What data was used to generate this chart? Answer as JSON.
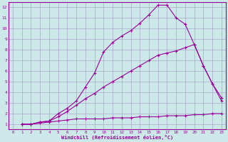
{
  "bg_color": "#cce8e8",
  "line_color": "#990099",
  "grid_color": "#aaaacc",
  "xlabel": "Windchill (Refroidissement éolien,°C)",
  "xlabel_color": "#990099",
  "tick_color": "#990099",
  "xlim": [
    -0.5,
    23.5
  ],
  "ylim": [
    0.5,
    12.5
  ],
  "xticks": [
    0,
    1,
    2,
    3,
    4,
    5,
    6,
    7,
    8,
    9,
    10,
    11,
    12,
    13,
    14,
    15,
    16,
    17,
    18,
    19,
    20,
    21,
    22,
    23
  ],
  "yticks": [
    1,
    2,
    3,
    4,
    5,
    6,
    7,
    8,
    9,
    10,
    11,
    12
  ],
  "curve1_x": [
    1,
    2,
    3,
    4,
    5,
    6,
    7,
    8,
    9,
    10,
    11,
    12,
    13,
    14,
    15,
    16,
    17,
    18,
    19,
    20,
    21,
    22,
    23
  ],
  "curve1_y": [
    1,
    1,
    1.2,
    1.3,
    2.0,
    2.5,
    3.2,
    4.5,
    5.8,
    7.8,
    8.7,
    9.3,
    9.8,
    10.5,
    11.3,
    12.2,
    12.2,
    11.0,
    10.4,
    8.5,
    6.5,
    4.8,
    3.5
  ],
  "curve2_x": [
    1,
    2,
    3,
    4,
    5,
    6,
    7,
    8,
    9,
    10,
    11,
    12,
    13,
    14,
    15,
    16,
    17,
    18,
    19,
    20,
    21,
    22,
    23
  ],
  "curve2_y": [
    1,
    1,
    1.2,
    1.3,
    1.7,
    2.2,
    2.8,
    3.4,
    3.9,
    4.5,
    5.0,
    5.5,
    6.0,
    6.5,
    7.0,
    7.5,
    7.7,
    7.9,
    8.2,
    8.5,
    6.5,
    4.8,
    3.2
  ],
  "curve3_x": [
    1,
    2,
    3,
    4,
    5,
    6,
    7,
    8,
    9,
    10,
    11,
    12,
    13,
    14,
    15,
    16,
    17,
    18,
    19,
    20,
    21,
    22,
    23
  ],
  "curve3_y": [
    1,
    1,
    1.1,
    1.2,
    1.3,
    1.4,
    1.5,
    1.5,
    1.5,
    1.5,
    1.6,
    1.6,
    1.6,
    1.7,
    1.7,
    1.7,
    1.8,
    1.8,
    1.8,
    1.9,
    1.9,
    2.0,
    2.0
  ]
}
